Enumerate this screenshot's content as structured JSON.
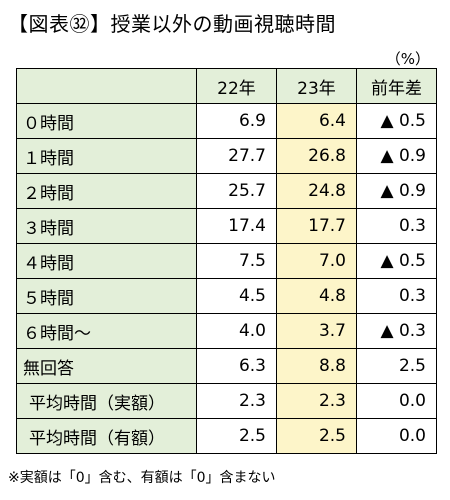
{
  "title": "【図表㉜】授業以外の動画視聴時間",
  "unit": "（%）",
  "table": {
    "headers": [
      "",
      "22年",
      "23年",
      "前年差"
    ],
    "rows": [
      {
        "label": "０時間",
        "y22": "6.9",
        "y23": "6.4",
        "diff": "▲ 0.5"
      },
      {
        "label": "１時間",
        "y22": "27.7",
        "y23": "26.8",
        "diff": "▲ 0.9"
      },
      {
        "label": "２時間",
        "y22": "25.7",
        "y23": "24.8",
        "diff": "▲ 0.9"
      },
      {
        "label": "３時間",
        "y22": "17.4",
        "y23": "17.7",
        "diff": "0.3"
      },
      {
        "label": "４時間",
        "y22": "7.5",
        "y23": "7.0",
        "diff": "▲ 0.5"
      },
      {
        "label": "５時間",
        "y22": "4.5",
        "y23": "4.8",
        "diff": "0.3"
      },
      {
        "label": "６時間～",
        "y22": "4.0",
        "y23": "3.7",
        "diff": "▲ 0.3"
      },
      {
        "label": "無回答",
        "y22": "6.3",
        "y23": "8.8",
        "diff": "2.5"
      },
      {
        "label": "平均時間（実額）",
        "y22": "2.3",
        "y23": "2.3",
        "diff": "0.0"
      },
      {
        "label": "平均時間（有額）",
        "y22": "2.5",
        "y23": "2.5",
        "diff": "0.0"
      }
    ]
  },
  "note": "※実額は「0」含む、有額は「0」含まない",
  "colors": {
    "label_bg": "#e3efd9",
    "highlight_23": "#fdf5c9"
  }
}
